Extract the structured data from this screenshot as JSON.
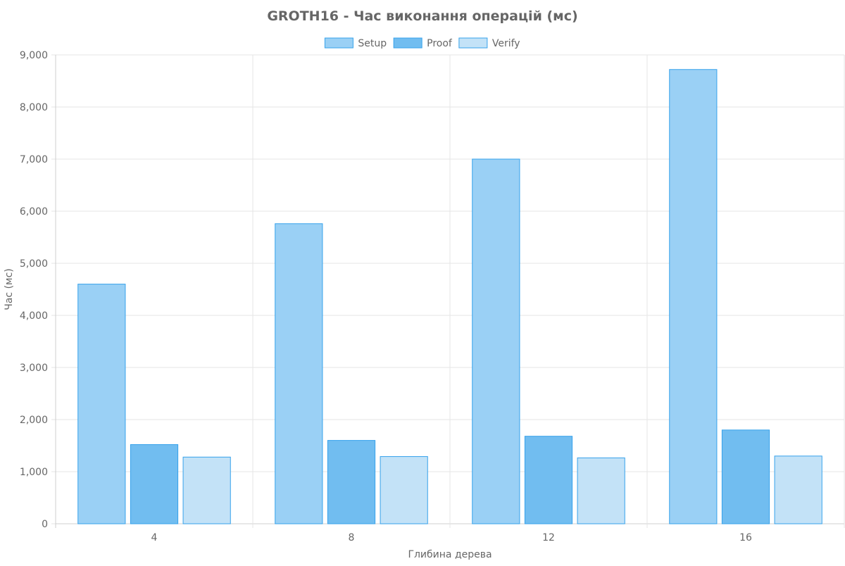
{
  "chart_data": {
    "type": "bar",
    "title": "GROTH16 - Час виконання операцій (мс)",
    "xlabel": "Глибина дерева",
    "ylabel": "Час (мс)",
    "categories": [
      "4",
      "8",
      "12",
      "16"
    ],
    "series": [
      {
        "name": "Setup",
        "values": [
          4600,
          5760,
          7000,
          8720
        ],
        "color": "#9ad0f5",
        "border": "#36a2eb"
      },
      {
        "name": "Proof",
        "values": [
          1520,
          1600,
          1680,
          1800
        ],
        "color": "#71bdf0",
        "border": "#36a2eb"
      },
      {
        "name": "Verify",
        "values": [
          1280,
          1290,
          1265,
          1300
        ],
        "color": "#c3e2f7",
        "border": "#36a2eb"
      }
    ],
    "ylim": [
      0,
      9000
    ],
    "y_ticks": [
      "0",
      "1,000",
      "2,000",
      "3,000",
      "4,000",
      "5,000",
      "6,000",
      "7,000",
      "8,000",
      "9,000"
    ],
    "grid": true,
    "legend_position": "top-center"
  }
}
